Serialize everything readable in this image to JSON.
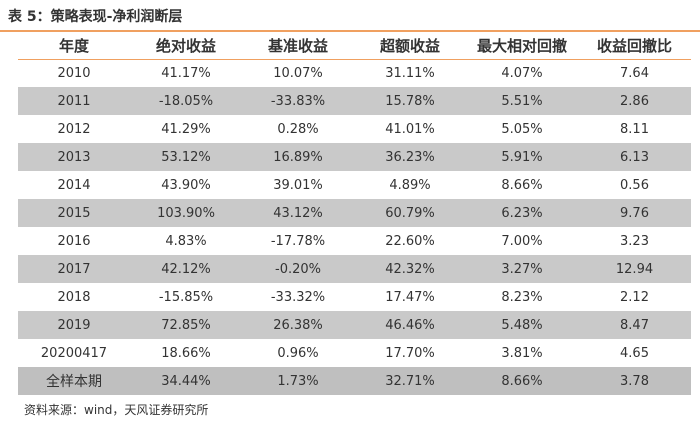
{
  "caption": "表 5：策略表现-净利润断层",
  "table": {
    "headers": [
      "年度",
      "绝对收益",
      "基准收益",
      "超额收益",
      "最大相对回撤",
      "收益回撤比"
    ],
    "rows": [
      [
        "2010",
        "41.17%",
        "10.07%",
        "31.11%",
        "4.07%",
        "7.64"
      ],
      [
        "2011",
        "-18.05%",
        "-33.83%",
        "15.78%",
        "5.51%",
        "2.86"
      ],
      [
        "2012",
        "41.29%",
        "0.28%",
        "41.01%",
        "5.05%",
        "8.11"
      ],
      [
        "2013",
        "53.12%",
        "16.89%",
        "36.23%",
        "5.91%",
        "6.13"
      ],
      [
        "2014",
        "43.90%",
        "39.01%",
        "4.89%",
        "8.66%",
        "0.56"
      ],
      [
        "2015",
        "103.90%",
        "43.12%",
        "60.79%",
        "6.23%",
        "9.76"
      ],
      [
        "2016",
        "4.83%",
        "-17.78%",
        "22.60%",
        "7.00%",
        "3.23"
      ],
      [
        "2017",
        "42.12%",
        "-0.20%",
        "42.32%",
        "3.27%",
        "12.94"
      ],
      [
        "2018",
        "-15.85%",
        "-33.32%",
        "17.47%",
        "8.23%",
        "2.12"
      ],
      [
        "2019",
        "72.85%",
        "26.38%",
        "46.46%",
        "5.48%",
        "8.47"
      ],
      [
        "20200417",
        "18.66%",
        "0.96%",
        "17.70%",
        "3.81%",
        "4.65"
      ],
      [
        "全样本期",
        "34.44%",
        "1.73%",
        "32.71%",
        "8.66%",
        "3.78"
      ]
    ]
  },
  "source": "资料来源：wind，天风证券研究所",
  "colors": {
    "accent_rule": "#f0a060",
    "row_shade": "#c9c9c9",
    "summary_shade": "#bfbfbf"
  }
}
